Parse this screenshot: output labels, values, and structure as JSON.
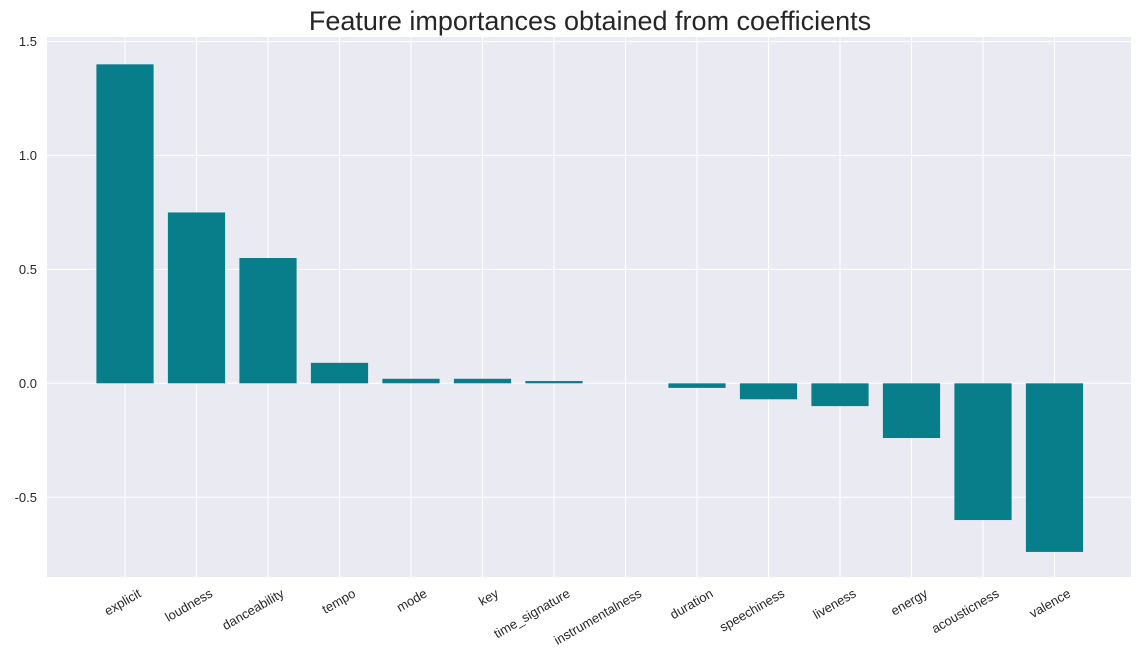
{
  "chart_data": {
    "type": "bar",
    "title": "Feature importances obtained from coefficients",
    "xlabel": "",
    "ylabel": "",
    "categories": [
      "explicit",
      "loudness",
      "danceability",
      "tempo",
      "mode",
      "key",
      "time_signature",
      "instrumentalness",
      "duration",
      "speechiness",
      "liveness",
      "energy",
      "acousticness",
      "valence"
    ],
    "values": [
      1.4,
      0.75,
      0.55,
      0.09,
      0.02,
      0.02,
      0.01,
      0.0,
      -0.02,
      -0.07,
      -0.1,
      -0.24,
      -0.6,
      -0.74
    ],
    "ylim": [
      -0.85,
      1.52
    ],
    "yticks": [
      "-0.5",
      "0.0",
      "0.5",
      "1.0",
      "1.5"
    ],
    "grid": true,
    "legend": "none",
    "colors": {
      "bar": "#087e8b",
      "plot_background": "#eaeaf2",
      "grid": "#ffffff",
      "text": "#262626"
    }
  }
}
